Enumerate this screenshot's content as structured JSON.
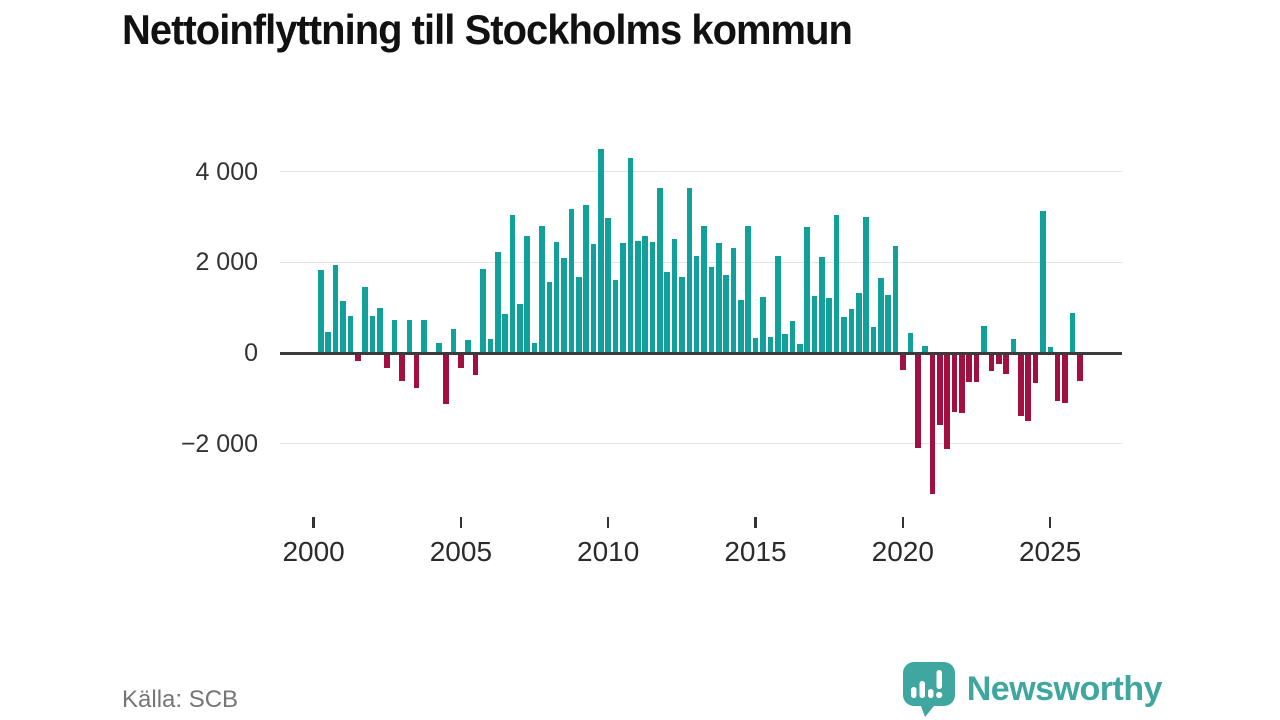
{
  "title": "Nettoinflyttning till Stockholms kommun",
  "source": "Källa: SCB",
  "brand": {
    "name": "Newsworthy",
    "color": "#3fa6a0",
    "icon": "bar-chart-speech-bubble"
  },
  "colors": {
    "positive": "#12a19a",
    "negative": "#a2103f",
    "grid": "#e3e3e3",
    "zero_line": "#3b3b3b",
    "axis_text": "#333333",
    "source_text": "#757575",
    "background": "#ffffff"
  },
  "chart_data": {
    "type": "bar",
    "title": "Nettoinflyttning till Stockholms kommun",
    "frequency": "quarterly",
    "start_year": 2000,
    "start_quarter": 1,
    "values": [
      1830,
      460,
      1930,
      1150,
      820,
      -170,
      1450,
      810,
      1000,
      -320,
      730,
      -610,
      730,
      -770,
      730,
      20,
      220,
      -1120,
      530,
      -320,
      290,
      -480,
      1850,
      310,
      2230,
      870,
      3050,
      1090,
      2580,
      230,
      2800,
      1560,
      2450,
      2100,
      3180,
      1680,
      3260,
      2410,
      4500,
      2970,
      1600,
      2430,
      4300,
      2470,
      2580,
      2450,
      3640,
      1790,
      2520,
      1670,
      3640,
      2140,
      2790,
      1890,
      2420,
      1730,
      2320,
      1170,
      2790,
      330,
      1230,
      350,
      2140,
      420,
      700,
      200,
      2780,
      1260,
      2120,
      1220,
      3050,
      790,
      960,
      1330,
      3000,
      570,
      1650,
      1280,
      2370,
      -375,
      450,
      -2100,
      160,
      -3100,
      -1580,
      -2120,
      -1290,
      -1320,
      -630,
      -650,
      590,
      -390,
      -250,
      -455,
      310,
      -1400,
      -1500,
      -660,
      3140,
      130,
      -1060,
      -1100,
      880,
      -620
    ],
    "y_ticks": [
      {
        "label": "4 000",
        "value": 4000
      },
      {
        "label": "2 000",
        "value": 2000
      },
      {
        "label": "0",
        "value": 0
      },
      {
        "label": "−2 000",
        "value": -2000
      }
    ],
    "x_ticks": [
      {
        "label": "2000",
        "value": 2000
      },
      {
        "label": "2005",
        "value": 2005
      },
      {
        "label": "2010",
        "value": 2010
      },
      {
        "label": "2015",
        "value": 2015
      },
      {
        "label": "2020",
        "value": 2020
      },
      {
        "label": "2025",
        "value": 2025
      }
    ],
    "ylim": [
      -3500,
      4700
    ],
    "grid": true,
    "legend": "none",
    "positive_color": "#12a19a",
    "negative_color": "#a2103f"
  }
}
